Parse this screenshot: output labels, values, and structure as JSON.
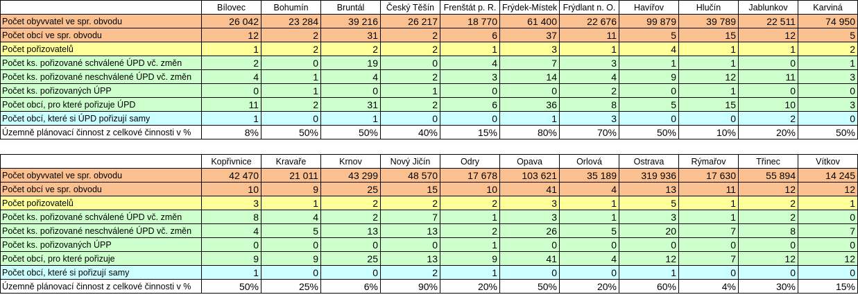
{
  "top": {
    "towns": [
      "Bílovec",
      "Bohumín",
      "Bruntál",
      "Český Těšín",
      "Frenštát p. R.",
      "Frýdek-Místek",
      "Frýdlant n. O.",
      "Havířov",
      "Hlučín",
      "Jablunkov",
      "Karviná"
    ],
    "rows": [
      {
        "label": "Počet obyvvatel ve spr. obvodu",
        "values": [
          "26 042",
          "23 284",
          "39 216",
          "26 217",
          "18 770",
          "61 400",
          "22 676",
          "99 879",
          "39 789",
          "22 511",
          "74 950"
        ]
      },
      {
        "label": "Počet obcí ve spr. obvodu",
        "values": [
          "12",
          "2",
          "31",
          "2",
          "6",
          "37",
          "11",
          "5",
          "15",
          "12",
          "5"
        ]
      },
      {
        "label": "Počet pořizovatelů",
        "values": [
          "1",
          "2",
          "2",
          "2",
          "1",
          "3",
          "1",
          "4",
          "1",
          "1",
          "2"
        ]
      },
      {
        "label": "Počet ks. pořizované schválené ÚPD vč. změn",
        "values": [
          "2",
          "0",
          "19",
          "0",
          "4",
          "7",
          "3",
          "1",
          "1",
          "0",
          "1"
        ]
      },
      {
        "label": "Počet ks. pořizované neschválené ÚPD vč. změn",
        "values": [
          "4",
          "1",
          "4",
          "2",
          "3",
          "14",
          "4",
          "9",
          "12",
          "11",
          "3"
        ]
      },
      {
        "label": "Počet ks. pořizovaných ÚPP",
        "values": [
          "0",
          "1",
          "0",
          "1",
          "0",
          "0",
          "2",
          "0",
          "1",
          "0",
          "0"
        ]
      },
      {
        "label": "Počet obcí, pro které pořizuje ÚPD",
        "values": [
          "11",
          "2",
          "31",
          "2",
          "6",
          "36",
          "8",
          "5",
          "15",
          "10",
          "3"
        ]
      },
      {
        "label": "Počet obcí, které si ÚPD pořizují samy",
        "values": [
          "1",
          "0",
          "1",
          "0",
          "0",
          "1",
          "3",
          "0",
          "0",
          "2",
          "0"
        ]
      },
      {
        "label": "Územně plánovací činnost z celkové činnosti v %",
        "values": [
          "8%",
          "50%",
          "50%",
          "40%",
          "15%",
          "80%",
          "70%",
          "50%",
          "10%",
          "20%",
          "50%"
        ]
      }
    ]
  },
  "bottom": {
    "towns": [
      "Kopřivnice",
      "Kravaře",
      "Krnov",
      "Nový Jičín",
      "Odry",
      "Opava",
      "Orlová",
      "Ostrava",
      "Rýmařov",
      "Třinec",
      "Vítkov"
    ],
    "rows": [
      {
        "label": "Počet obyvvatel ve spr. obvodu",
        "values": [
          "42 470",
          "21 011",
          "43 299",
          "48 570",
          "17 678",
          "103 621",
          "35 189",
          "319 936",
          "17 630",
          "55 894",
          "14 245"
        ]
      },
      {
        "label": "Počet obcí ve spr. obvodu",
        "values": [
          "10",
          "9",
          "25",
          "15",
          "10",
          "41",
          "4",
          "13",
          "11",
          "12",
          "12"
        ]
      },
      {
        "label": "Počet pořizovatelů",
        "values": [
          "3",
          "1",
          "2",
          "2",
          "2",
          "3",
          "1",
          "5",
          "1",
          "2",
          "1"
        ]
      },
      {
        "label": "Počet ks. pořizované schválené ÚPD vč. změn",
        "values": [
          "8",
          "4",
          "2",
          "7",
          "1",
          "3",
          "1",
          "3",
          "1",
          "2",
          "0"
        ]
      },
      {
        "label": "Počet ks. pořizované neschválené ÚPD vč. změn",
        "values": [
          "4",
          "5",
          "13",
          "13",
          "2",
          "26",
          "5",
          "20",
          "7",
          "8",
          "7"
        ]
      },
      {
        "label": "Počet ks. pořizovaných ÚPP",
        "values": [
          "0",
          "0",
          "0",
          "0",
          "1",
          "0",
          "0",
          "0",
          "0",
          "0",
          "0"
        ]
      },
      {
        "label": "Počet obcí, pro které pořizuje",
        "values": [
          "9",
          "9",
          "25",
          "13",
          "9",
          "41",
          "4",
          "12",
          "7",
          "12",
          "12"
        ]
      },
      {
        "label": "Počet obcí, které si pořizují samy",
        "values": [
          "1",
          "0",
          "0",
          "2",
          "1",
          "0",
          "0",
          "1",
          "0",
          "0",
          "0"
        ]
      },
      {
        "label": "Územně plánovací činnost z celkové činnosti v %",
        "values": [
          "50%",
          "25%",
          "6%",
          "90%",
          "20%",
          "50%",
          "20%",
          "60%",
          "4%",
          "30%",
          "15%"
        ]
      }
    ]
  },
  "row_colors": {
    "orange": "#fac090",
    "yellow": "#ffff99",
    "green": "#ccffcc",
    "blue": "#ccffff",
    "white": "#ffffff"
  }
}
